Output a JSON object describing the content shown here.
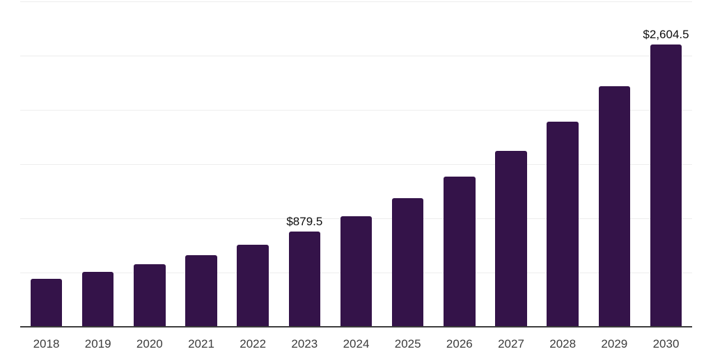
{
  "chart_data": {
    "type": "bar",
    "title": "",
    "xlabel": "",
    "ylabel": "",
    "categories": [
      "2018",
      "2019",
      "2020",
      "2021",
      "2022",
      "2023",
      "2024",
      "2025",
      "2026",
      "2027",
      "2028",
      "2029",
      "2030"
    ],
    "values": [
      440,
      505,
      575,
      660,
      755,
      879.5,
      1020,
      1185,
      1385,
      1620,
      1890,
      2220,
      2604.5
    ],
    "bar_labels": [
      "",
      "",
      "",
      "",
      "",
      "$879.5",
      "",
      "",
      "",
      "",
      "",
      "",
      "$2,604.5"
    ],
    "ylim": [
      0,
      3000
    ],
    "gridline_step": 500,
    "grid": "horizontal-only",
    "legend_position": "none",
    "y_tick_labels_visible": false,
    "colors": {
      "bar": "#341349",
      "gridline": "#ededed",
      "axis_line": "#3c3c3c",
      "x_label": "#3c3c3c",
      "data_label": "#0d0d0d",
      "background": "#ffffff"
    }
  }
}
